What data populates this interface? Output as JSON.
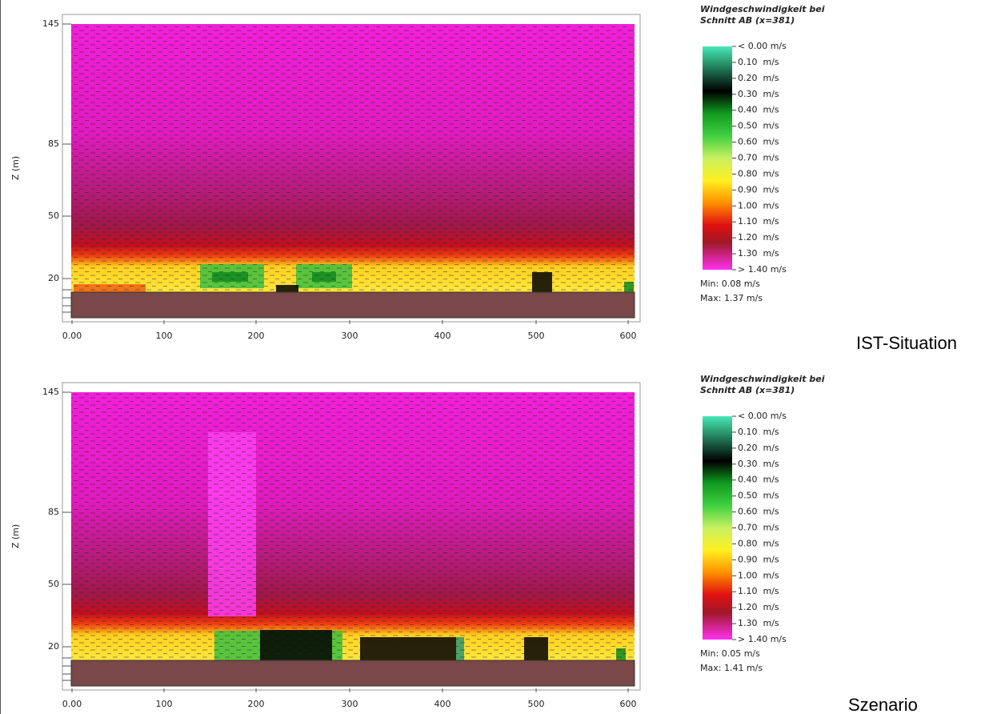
{
  "panels": [
    {
      "y_axis_label": "Z (m)",
      "x_ticks": [
        "0.00",
        "100",
        "200",
        "300",
        "400",
        "500",
        "600"
      ],
      "y_ticks": [
        "145",
        "85",
        "50",
        "20"
      ],
      "legend": {
        "title_lines": [
          "Windgeschwindigkeit bei",
          "Schnitt AB (x=381)"
        ],
        "labels": [
          "< 0.00 m/s",
          "0.10  m/s",
          "0.20  m/s",
          "0.30  m/s",
          "0.40  m/s",
          "0.50  m/s",
          "0.60  m/s",
          "0.70  m/s",
          "0.80  m/s",
          "0.90  m/s",
          "1.00  m/s",
          "1.10  m/s",
          "1.20  m/s",
          "1.30  m/s",
          "> 1.40 m/s"
        ],
        "min": "Min: 0.08 m/s",
        "max": "Max: 1.37 m/s"
      },
      "caption": "IST-Situation"
    },
    {
      "y_axis_label": "Z (m)",
      "x_ticks": [
        "0.00",
        "100",
        "200",
        "300",
        "400",
        "500",
        "600"
      ],
      "y_ticks": [
        "145",
        "85",
        "50",
        "20"
      ],
      "legend": {
        "title_lines": [
          "Windgeschwindigkeit bei",
          "Schnitt AB (x=381)"
        ],
        "labels": [
          "< 0.00 m/s",
          "0.10  m/s",
          "0.20  m/s",
          "0.30  m/s",
          "0.40  m/s",
          "0.50  m/s",
          "0.60  m/s",
          "0.70  m/s",
          "0.80  m/s",
          "0.90  m/s",
          "1.00  m/s",
          "1.10  m/s",
          "1.20  m/s",
          "1.30  m/s",
          "> 1.40 m/s"
        ],
        "min": "Min: 0.05 m/s",
        "max": "Max: 1.41 m/s"
      },
      "caption": "Szenario"
    }
  ]
}
